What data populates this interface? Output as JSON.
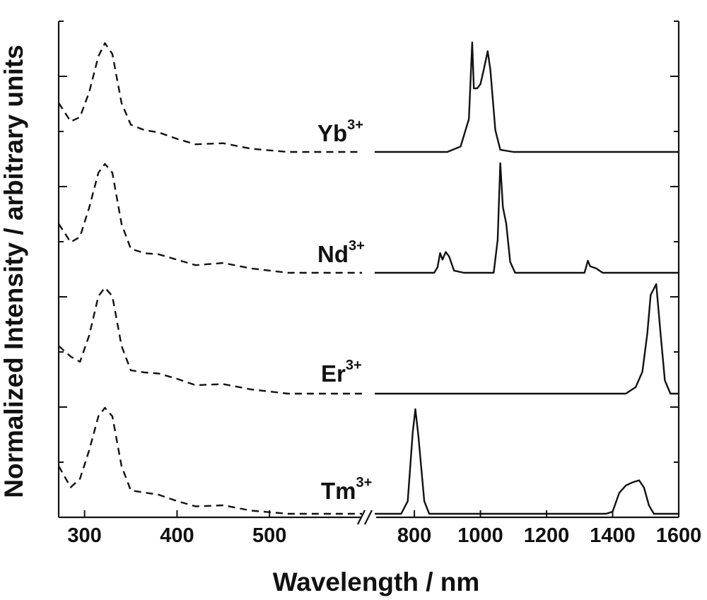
{
  "chart_data": {
    "type": "line",
    "xlabel": "Wavelength / nm",
    "ylabel": "Normalized Intensity / arbitrary units",
    "x_axis_break": true,
    "left_segment": {
      "xlim": [
        272,
        600
      ],
      "x_ticks": [
        300,
        400,
        500
      ],
      "line_style": "dashed"
    },
    "right_segment": {
      "xlim": [
        680,
        1600
      ],
      "x_ticks": [
        800,
        1000,
        1200,
        1400,
        1600
      ],
      "line_style": "solid"
    },
    "y_ticks_labeled": false,
    "series": [
      {
        "name": "Yb",
        "superscript": "3+",
        "excitation": [
          [
            272,
            0.45
          ],
          [
            285,
            0.28
          ],
          [
            295,
            0.32
          ],
          [
            305,
            0.55
          ],
          [
            315,
            0.88
          ],
          [
            322,
            1.0
          ],
          [
            330,
            0.9
          ],
          [
            340,
            0.45
          ],
          [
            350,
            0.25
          ],
          [
            365,
            0.2
          ],
          [
            380,
            0.18
          ],
          [
            400,
            0.12
          ],
          [
            420,
            0.07
          ],
          [
            450,
            0.08
          ],
          [
            480,
            0.03
          ],
          [
            520,
            0.0
          ],
          [
            600,
            0.0
          ]
        ],
        "emission": [
          [
            680,
            0
          ],
          [
            900,
            0
          ],
          [
            940,
            0.05
          ],
          [
            965,
            0.3
          ],
          [
            975,
            1.0
          ],
          [
            980,
            0.58
          ],
          [
            990,
            0.58
          ],
          [
            1000,
            0.62
          ],
          [
            1010,
            0.75
          ],
          [
            1022,
            0.92
          ],
          [
            1030,
            0.75
          ],
          [
            1045,
            0.2
          ],
          [
            1060,
            0.02
          ],
          [
            1100,
            0
          ],
          [
            1600,
            0
          ]
        ]
      },
      {
        "name": "Nd",
        "superscript": "3+",
        "excitation": [
          [
            272,
            0.45
          ],
          [
            285,
            0.28
          ],
          [
            295,
            0.33
          ],
          [
            305,
            0.6
          ],
          [
            315,
            0.92
          ],
          [
            322,
            1.0
          ],
          [
            330,
            0.92
          ],
          [
            340,
            0.45
          ],
          [
            350,
            0.22
          ],
          [
            365,
            0.18
          ],
          [
            380,
            0.17
          ],
          [
            400,
            0.12
          ],
          [
            420,
            0.07
          ],
          [
            450,
            0.09
          ],
          [
            480,
            0.04
          ],
          [
            520,
            0.0
          ],
          [
            600,
            0.0
          ]
        ],
        "emission": [
          [
            680,
            0
          ],
          [
            860,
            0
          ],
          [
            870,
            0.05
          ],
          [
            878,
            0.18
          ],
          [
            885,
            0.12
          ],
          [
            895,
            0.19
          ],
          [
            905,
            0.15
          ],
          [
            920,
            0.02
          ],
          [
            950,
            0
          ],
          [
            1040,
            0
          ],
          [
            1052,
            0.3
          ],
          [
            1060,
            1.0
          ],
          [
            1068,
            0.6
          ],
          [
            1078,
            0.45
          ],
          [
            1090,
            0.1
          ],
          [
            1105,
            0
          ],
          [
            1300,
            0
          ],
          [
            1315,
            0
          ],
          [
            1325,
            0.11
          ],
          [
            1332,
            0.06
          ],
          [
            1350,
            0.04
          ],
          [
            1370,
            0
          ],
          [
            1600,
            0
          ]
        ]
      },
      {
        "name": "Er",
        "superscript": "3+",
        "excitation": [
          [
            272,
            0.45
          ],
          [
            285,
            0.35
          ],
          [
            295,
            0.3
          ],
          [
            305,
            0.55
          ],
          [
            315,
            0.92
          ],
          [
            322,
            1.0
          ],
          [
            330,
            0.92
          ],
          [
            340,
            0.45
          ],
          [
            350,
            0.22
          ],
          [
            365,
            0.2
          ],
          [
            380,
            0.19
          ],
          [
            400,
            0.14
          ],
          [
            420,
            0.08
          ],
          [
            450,
            0.09
          ],
          [
            480,
            0.04
          ],
          [
            520,
            0.0
          ],
          [
            600,
            0.0
          ]
        ],
        "emission": [
          [
            680,
            0
          ],
          [
            1440,
            0
          ],
          [
            1470,
            0.06
          ],
          [
            1490,
            0.2
          ],
          [
            1505,
            0.55
          ],
          [
            1515,
            0.9
          ],
          [
            1532,
            1.0
          ],
          [
            1545,
            0.55
          ],
          [
            1558,
            0.12
          ],
          [
            1575,
            0.0
          ],
          [
            1600,
            0
          ]
        ]
      },
      {
        "name": "Tm",
        "superscript": "3+",
        "excitation": [
          [
            272,
            0.45
          ],
          [
            285,
            0.25
          ],
          [
            295,
            0.33
          ],
          [
            305,
            0.6
          ],
          [
            315,
            0.92
          ],
          [
            322,
            1.0
          ],
          [
            330,
            0.92
          ],
          [
            340,
            0.45
          ],
          [
            350,
            0.22
          ],
          [
            365,
            0.2
          ],
          [
            380,
            0.18
          ],
          [
            400,
            0.12
          ],
          [
            420,
            0.07
          ],
          [
            450,
            0.08
          ],
          [
            480,
            0.03
          ],
          [
            520,
            0.0
          ],
          [
            600,
            0.0
          ]
        ],
        "emission": [
          [
            680,
            0
          ],
          [
            760,
            0
          ],
          [
            780,
            0.12
          ],
          [
            795,
            0.78
          ],
          [
            803,
            1.0
          ],
          [
            812,
            0.75
          ],
          [
            830,
            0.12
          ],
          [
            845,
            0
          ],
          [
            1380,
            0
          ],
          [
            1400,
            0.02
          ],
          [
            1420,
            0.2
          ],
          [
            1440,
            0.27
          ],
          [
            1460,
            0.3
          ],
          [
            1480,
            0.32
          ],
          [
            1495,
            0.25
          ],
          [
            1510,
            0.08
          ],
          [
            1525,
            0
          ],
          [
            1600,
            0
          ]
        ]
      }
    ]
  }
}
